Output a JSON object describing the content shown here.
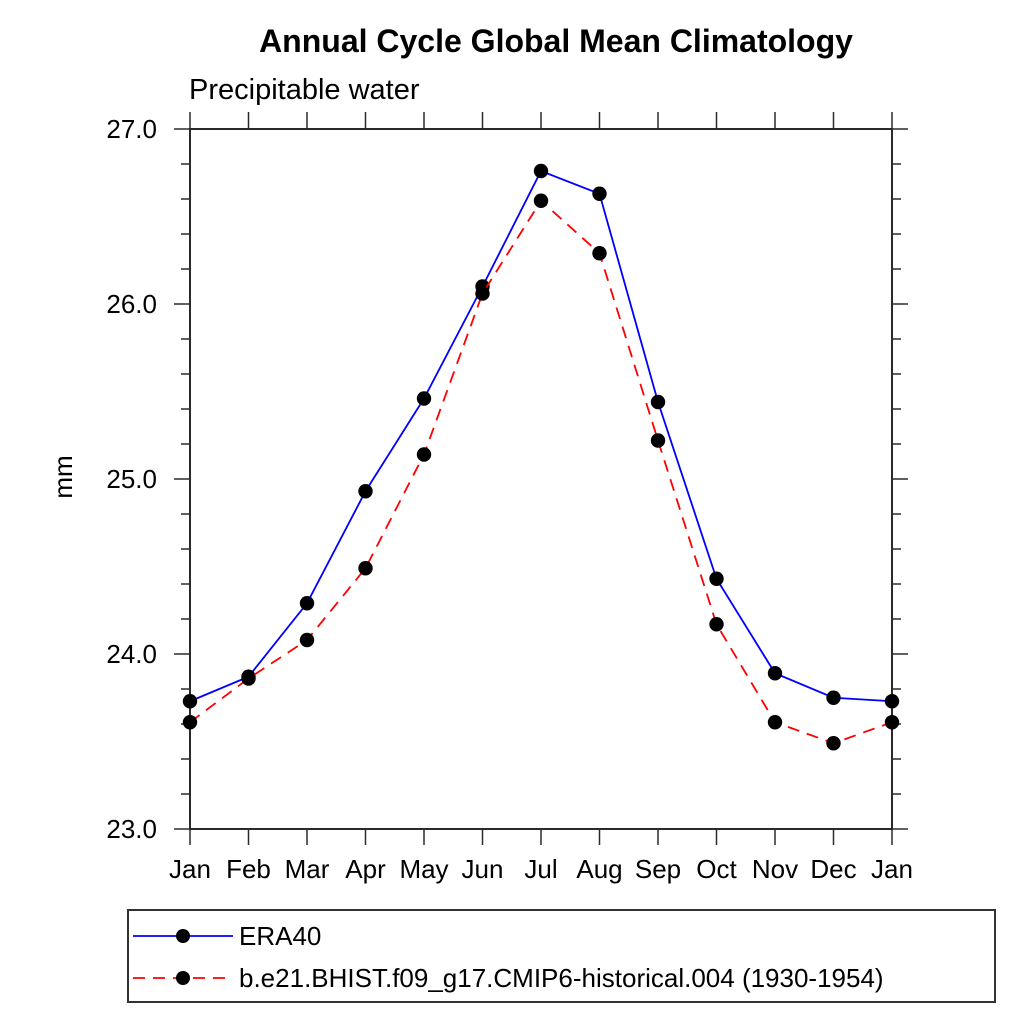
{
  "chart_data": {
    "type": "line",
    "title": "Annual Cycle Global Mean Climatology",
    "subtitle": "Precipitable water",
    "ylabel": "mm",
    "xlabel": "",
    "ylim": [
      23.0,
      27.0
    ],
    "y_major_ticks": [
      23.0,
      24.0,
      25.0,
      26.0,
      27.0
    ],
    "y_minor_step": 0.2,
    "grid": false,
    "legend_position": "bottom-left",
    "x_tick_labels": [
      "Jan",
      "Feb",
      "Mar",
      "Apr",
      "May",
      "Jun",
      "Jul",
      "Aug",
      "Sep",
      "Oct",
      "Nov",
      "Dec",
      "Jan"
    ],
    "series": [
      {
        "name": "ERA40",
        "color": "#0000ff",
        "line_style": "solid",
        "marker": "filled-circle",
        "marker_color": "#000000",
        "values": [
          23.73,
          23.87,
          24.29,
          24.93,
          25.46,
          26.1,
          26.76,
          26.63,
          25.44,
          24.43,
          23.89,
          23.75,
          23.73
        ]
      },
      {
        "name": "b.e21.BHIST.f09_g17.CMIP6-historical.004 (1930-1954)",
        "color": "#ff0000",
        "line_style": "dashed",
        "marker": "filled-circle",
        "marker_color": "#000000",
        "values": [
          23.61,
          23.86,
          24.08,
          24.49,
          25.14,
          26.06,
          26.59,
          26.29,
          25.22,
          24.17,
          23.61,
          23.49,
          23.61
        ]
      }
    ]
  }
}
